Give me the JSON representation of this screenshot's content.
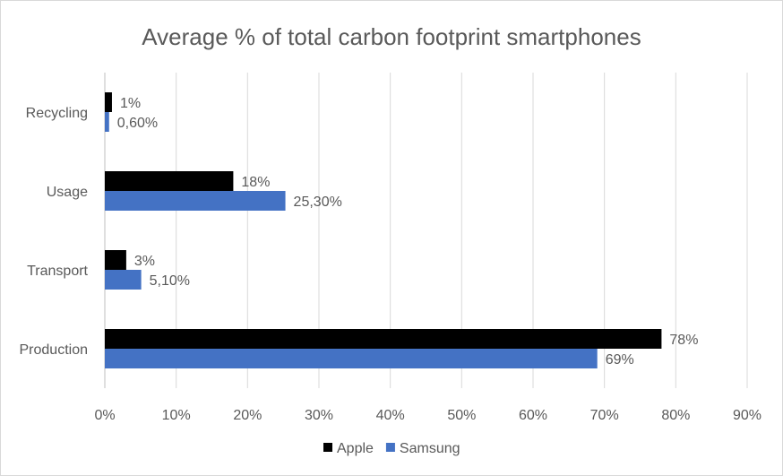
{
  "chart_data": {
    "type": "bar",
    "orientation": "horizontal",
    "title": "Average % of total carbon footprint smartphones",
    "categories": [
      "Recycling",
      "Usage",
      "Transport",
      "Production"
    ],
    "series": [
      {
        "name": "Apple",
        "color": "#000000",
        "values": [
          1,
          18,
          3,
          78
        ],
        "labels": [
          "1%",
          "18%",
          "3%",
          "78%"
        ]
      },
      {
        "name": "Samsung",
        "color": "#4472c4",
        "values": [
          0.6,
          25.3,
          5.1,
          69
        ],
        "labels": [
          "0,60%",
          "25,30%",
          "5,10%",
          "69%"
        ]
      }
    ],
    "xlim": [
      0,
      90
    ],
    "xticks": [
      0,
      10,
      20,
      30,
      40,
      50,
      60,
      70,
      80,
      90
    ],
    "xtick_labels": [
      "0%",
      "10%",
      "20%",
      "30%",
      "40%",
      "50%",
      "60%",
      "70%",
      "80%",
      "90%"
    ],
    "grid": "vertical",
    "legend": "bottom",
    "xlabel": "",
    "ylabel": ""
  }
}
